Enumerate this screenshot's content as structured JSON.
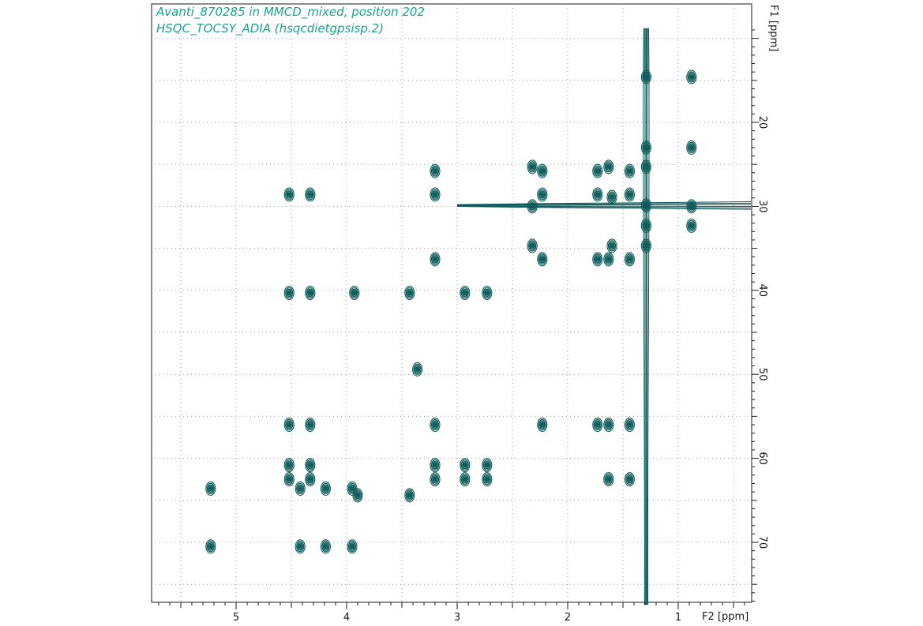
{
  "header": {
    "title_line1": "Avanti_870285 in MMCD_mixed, position 202",
    "title_line2": "HSQC_TOCSY_ADIA (hsqcdietgpsisp.2)"
  },
  "chart_data": {
    "type": "contour",
    "title": "Avanti_870285 in MMCD_mixed, position 202",
    "subtitle": "HSQC_TOCSY_ADIA (hsqcdietgpsisp.2)",
    "xlabel": "F2 [ppm]",
    "ylabel": "F1 [ppm]",
    "xlim": [
      5.78,
      0.35
    ],
    "ylim": [
      8.6,
      77.8
    ],
    "x_axis_reversed": true,
    "y_axis_top_to_bottom": true,
    "x_major_ticks": [
      5,
      4,
      3,
      2,
      1
    ],
    "y_major_ticks": [
      20,
      30,
      40,
      50,
      60,
      70
    ],
    "x_grid_step": 0.5,
    "y_grid_step": 5,
    "grid": "dotted",
    "contour_color": "#0c5a5a",
    "title_color": "#16a596",
    "ridges": [
      {
        "name": "vertical-ridge-1.29",
        "x": 1.29,
        "y_from": 8.6,
        "y_to": 77.8
      },
      {
        "name": "horizontal-ridge-29.9",
        "y": 29.9,
        "x_from": 3.0,
        "x_to": 0.35
      }
    ],
    "peaks": [
      {
        "x": 1.29,
        "y": 14.6
      },
      {
        "x": 0.88,
        "y": 14.6
      },
      {
        "x": 2.32,
        "y": 25.3
      },
      {
        "x": 2.23,
        "y": 25.8
      },
      {
        "x": 1.73,
        "y": 25.8
      },
      {
        "x": 1.63,
        "y": 25.3
      },
      {
        "x": 1.44,
        "y": 25.8
      },
      {
        "x": 1.29,
        "y": 25.3
      },
      {
        "x": 1.29,
        "y": 23.0
      },
      {
        "x": 0.88,
        "y": 23.0
      },
      {
        "x": 3.2,
        "y": 25.8
      },
      {
        "x": 4.52,
        "y": 28.6
      },
      {
        "x": 4.33,
        "y": 28.6
      },
      {
        "x": 3.2,
        "y": 28.6
      },
      {
        "x": 2.23,
        "y": 28.6
      },
      {
        "x": 1.73,
        "y": 28.6
      },
      {
        "x": 1.6,
        "y": 28.9
      },
      {
        "x": 1.44,
        "y": 28.6
      },
      {
        "x": 2.32,
        "y": 30.0
      },
      {
        "x": 1.29,
        "y": 29.9
      },
      {
        "x": 0.88,
        "y": 30.0
      },
      {
        "x": 1.29,
        "y": 32.3
      },
      {
        "x": 0.88,
        "y": 32.3
      },
      {
        "x": 2.32,
        "y": 34.7
      },
      {
        "x": 2.23,
        "y": 36.3
      },
      {
        "x": 1.6,
        "y": 34.7
      },
      {
        "x": 1.63,
        "y": 36.3
      },
      {
        "x": 1.73,
        "y": 36.3
      },
      {
        "x": 1.44,
        "y": 36.3
      },
      {
        "x": 1.29,
        "y": 34.7
      },
      {
        "x": 3.2,
        "y": 36.3
      },
      {
        "x": 4.52,
        "y": 40.3
      },
      {
        "x": 4.33,
        "y": 40.3
      },
      {
        "x": 3.93,
        "y": 40.3
      },
      {
        "x": 3.43,
        "y": 40.3
      },
      {
        "x": 2.93,
        "y": 40.3
      },
      {
        "x": 2.73,
        "y": 40.3
      },
      {
        "x": 3.36,
        "y": 49.4
      },
      {
        "x": 4.52,
        "y": 56.0
      },
      {
        "x": 4.33,
        "y": 56.0
      },
      {
        "x": 3.2,
        "y": 56.0
      },
      {
        "x": 2.23,
        "y": 56.0
      },
      {
        "x": 1.73,
        "y": 56.0
      },
      {
        "x": 1.63,
        "y": 56.0
      },
      {
        "x": 1.44,
        "y": 56.0
      },
      {
        "x": 4.52,
        "y": 60.8
      },
      {
        "x": 4.33,
        "y": 60.8
      },
      {
        "x": 3.2,
        "y": 60.8
      },
      {
        "x": 2.93,
        "y": 60.8
      },
      {
        "x": 2.73,
        "y": 60.8
      },
      {
        "x": 4.52,
        "y": 62.5
      },
      {
        "x": 4.42,
        "y": 63.6
      },
      {
        "x": 4.33,
        "y": 62.5
      },
      {
        "x": 4.19,
        "y": 63.6
      },
      {
        "x": 3.95,
        "y": 63.6
      },
      {
        "x": 3.9,
        "y": 64.4
      },
      {
        "x": 3.43,
        "y": 64.4
      },
      {
        "x": 3.2,
        "y": 62.5
      },
      {
        "x": 2.93,
        "y": 62.5
      },
      {
        "x": 2.73,
        "y": 62.5
      },
      {
        "x": 1.63,
        "y": 62.5
      },
      {
        "x": 1.44,
        "y": 62.5
      },
      {
        "x": 5.23,
        "y": 63.6
      },
      {
        "x": 5.23,
        "y": 70.5
      },
      {
        "x": 4.42,
        "y": 70.5
      },
      {
        "x": 4.19,
        "y": 70.5
      },
      {
        "x": 3.95,
        "y": 70.5
      }
    ]
  }
}
